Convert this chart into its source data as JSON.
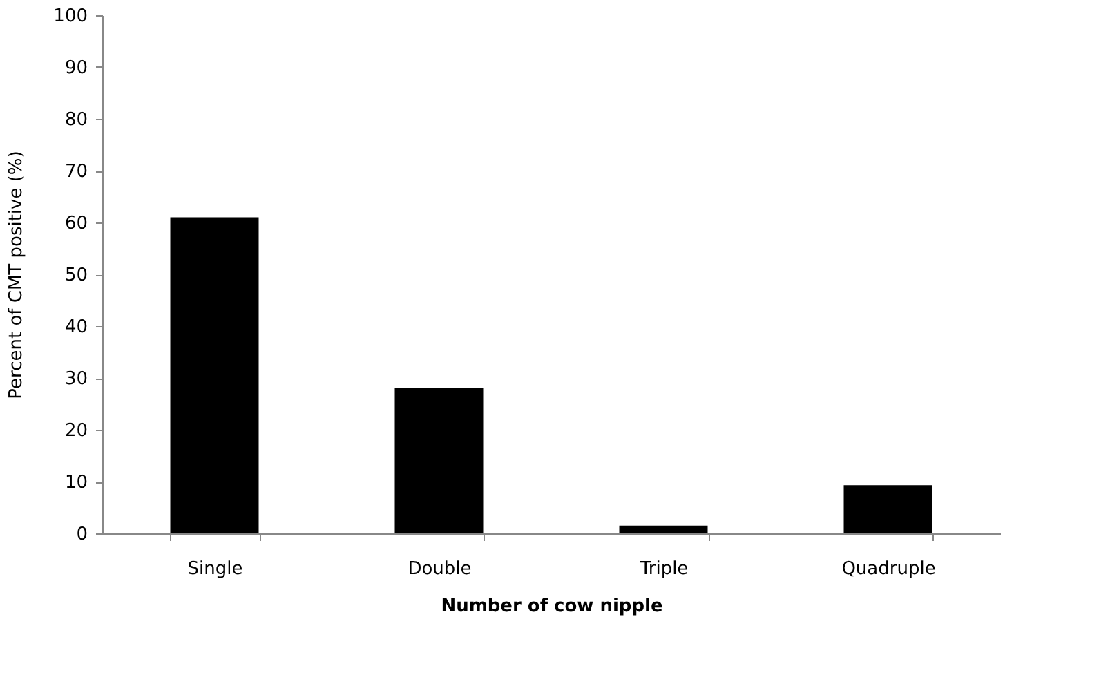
{
  "chart_data": {
    "type": "bar",
    "xlabel": "Number of cow nipple",
    "ylabel": "Percent of CMT positive (%)",
    "categories": [
      "Single",
      "Double",
      "Triple",
      "Quadruple"
    ],
    "values": [
      61,
      28,
      1.5,
      9.3
    ],
    "color": "#000000",
    "ylim": [
      0,
      100
    ],
    "yticks": [
      0,
      10,
      20,
      30,
      40,
      50,
      60,
      70,
      80,
      90,
      100
    ],
    "grid": false
  }
}
